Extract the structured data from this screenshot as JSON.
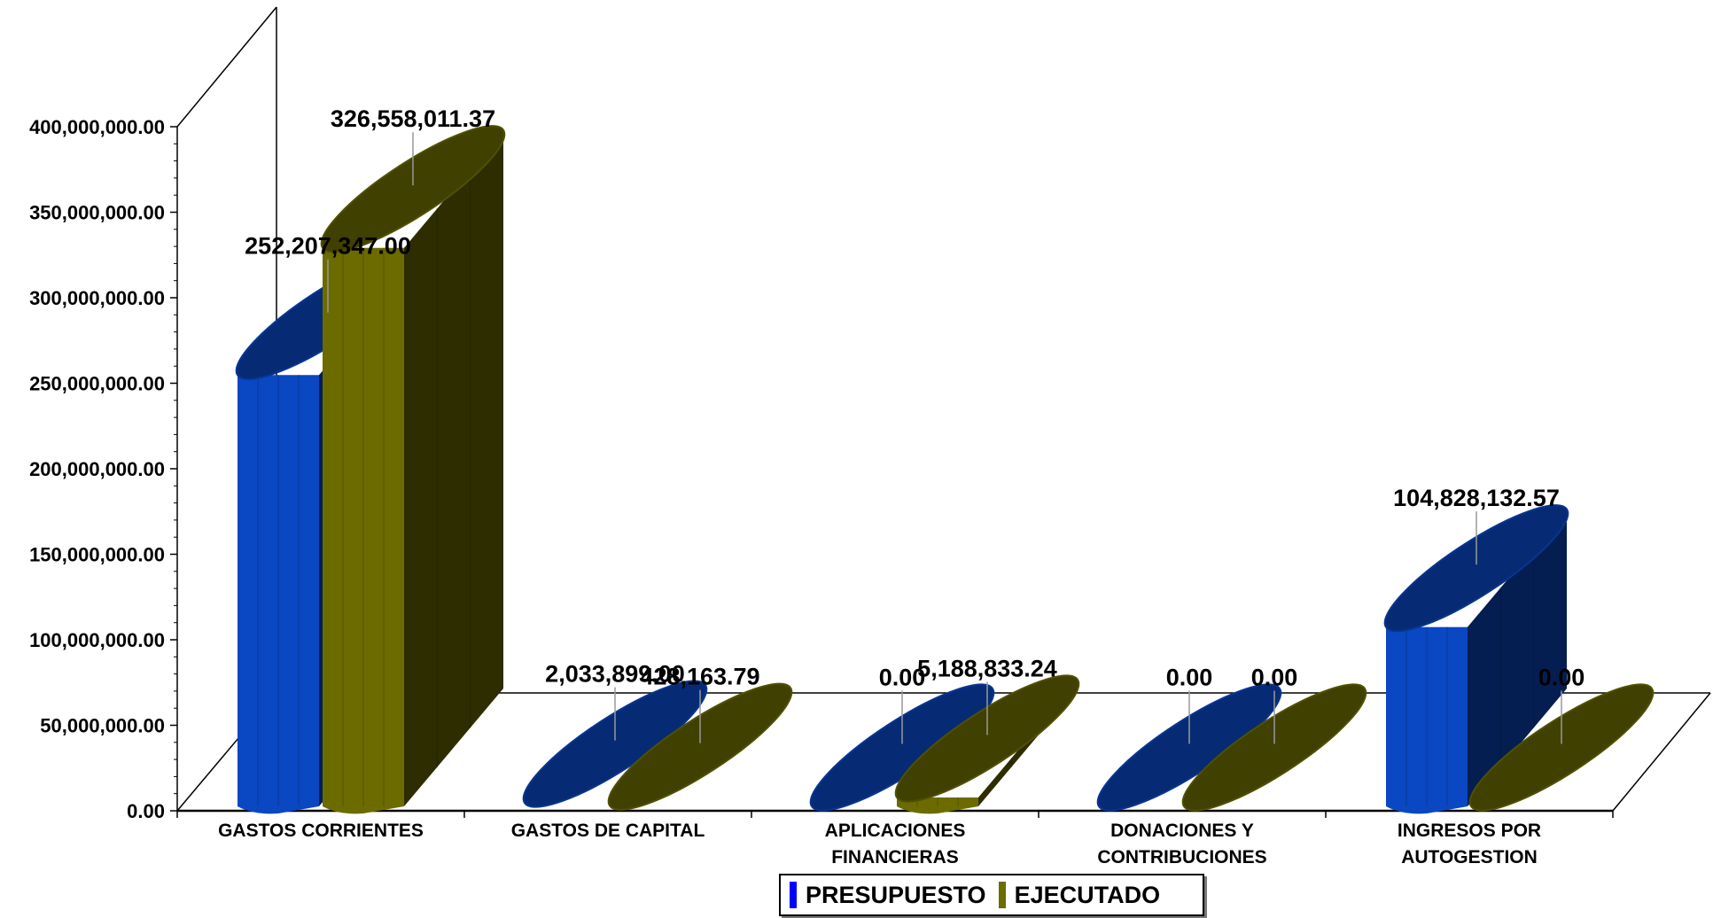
{
  "chart_data": {
    "type": "bar",
    "style": "3d-cylinder",
    "categories": [
      [
        "GASTOS CORRIENTES"
      ],
      [
        "GASTOS DE CAPITAL"
      ],
      [
        "APLICACIONES",
        "FINANCIERAS"
      ],
      [
        "DONACIONES Y",
        "CONTRIBUCIONES"
      ],
      [
        "INGRESOS POR",
        "AUTOGESTION"
      ]
    ],
    "series": [
      {
        "name": "PRESUPUESTO",
        "color": "#0a47c2",
        "values": [
          252207347.0,
          2033899.0,
          0.0,
          0.0,
          104828132.57
        ],
        "labels": [
          "252,207,347.00",
          "2,033,899.00",
          "0.00",
          "0.00",
          "104,828,132.57"
        ]
      },
      {
        "name": "EJECUTADO",
        "color": "#6b6b00",
        "values": [
          326558011.37,
          428163.79,
          5188833.24,
          0.0,
          0.0
        ],
        "labels": [
          "326,558,011.37",
          "428,163.79",
          "5,188,833.24",
          "0.00",
          "0.00"
        ]
      }
    ],
    "y_ticks": [
      "0.00",
      "50,000,000.00",
      "100,000,000.00",
      "150,000,000.00",
      "200,000,000.00",
      "250,000,000.00",
      "300,000,000.00",
      "350,000,000.00",
      "400,000,000.00"
    ],
    "ylim": [
      0,
      400000000
    ],
    "legend_position": "bottom-center",
    "grid": false
  }
}
